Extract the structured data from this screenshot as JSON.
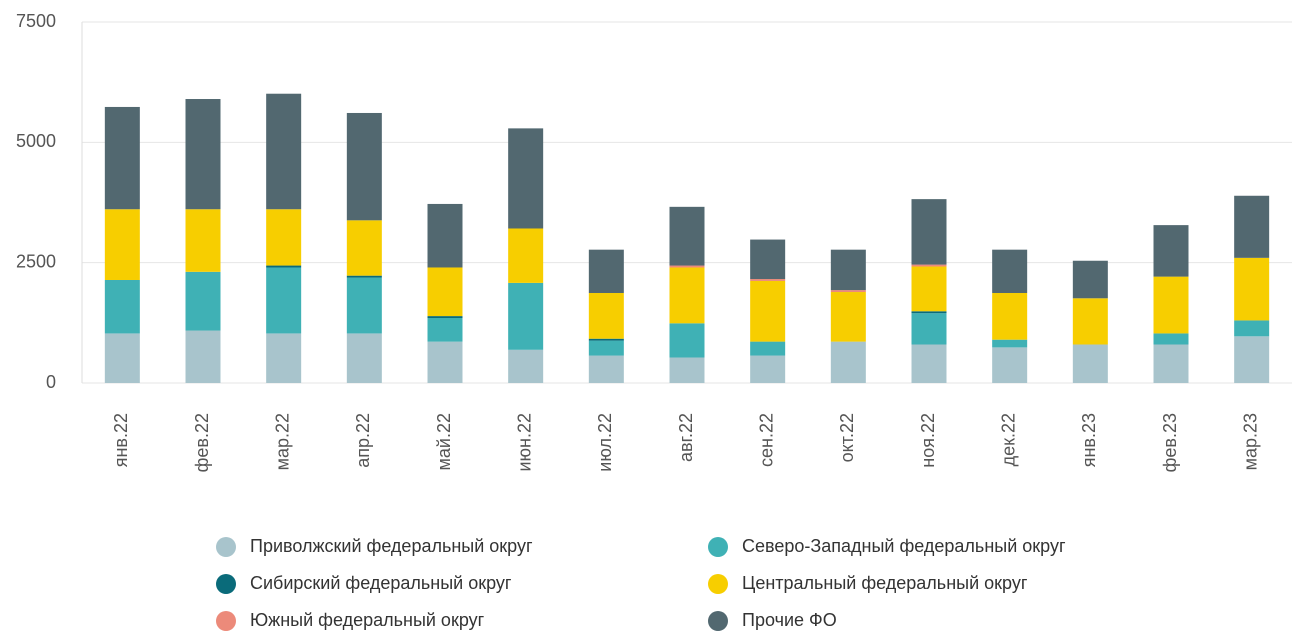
{
  "chart_data": {
    "type": "stacked-bar",
    "categories": [
      "янв.22",
      "фев.22",
      "мар.22",
      "апр.22",
      "май.22",
      "июн.22",
      "июл.22",
      "авг.22",
      "сен.22",
      "окт.22",
      "ноя.22",
      "дек.22",
      "янв.23",
      "фев.23",
      "мар.23"
    ],
    "series": [
      {
        "name": "Приволжский федеральный округ",
        "color": "#a8c4cc",
        "values": [
          1030,
          1090,
          1030,
          1030,
          860,
          690,
          570,
          530,
          570,
          860,
          800,
          740,
          800,
          800,
          970
        ]
      },
      {
        "name": "Северо-Западный федеральный округ",
        "color": "#3fb1b5",
        "values": [
          1110,
          1220,
          1370,
          1160,
          490,
          1390,
          310,
          710,
          290,
          0,
          650,
          160,
          0,
          230,
          330
        ]
      },
      {
        "name": "Сибирский федеральный округ",
        "color": "#0a6b7a",
        "values": [
          0,
          0,
          40,
          40,
          40,
          0,
          40,
          0,
          0,
          0,
          40,
          0,
          0,
          0,
          0
        ]
      },
      {
        "name": "Центральный федеральный округ",
        "color": "#f7ce00",
        "values": [
          1470,
          1300,
          1170,
          1150,
          1010,
          1130,
          950,
          1160,
          1260,
          1030,
          930,
          970,
          960,
          1180,
          1300
        ]
      },
      {
        "name": "Южный федеральный округ",
        "color": "#ec8a7a",
        "values": [
          0,
          0,
          0,
          0,
          0,
          0,
          0,
          40,
          40,
          40,
          40,
          0,
          0,
          0,
          0
        ]
      },
      {
        "name": "Прочие ФО",
        "color": "#526870",
        "values": [
          2125,
          2290,
          2400,
          2230,
          1320,
          2080,
          900,
          1220,
          820,
          840,
          1360,
          900,
          780,
          1070,
          1290
        ]
      }
    ],
    "ylim": [
      0,
      7500
    ],
    "yticks": [
      0,
      2500,
      5000,
      7500
    ],
    "grid": true
  }
}
